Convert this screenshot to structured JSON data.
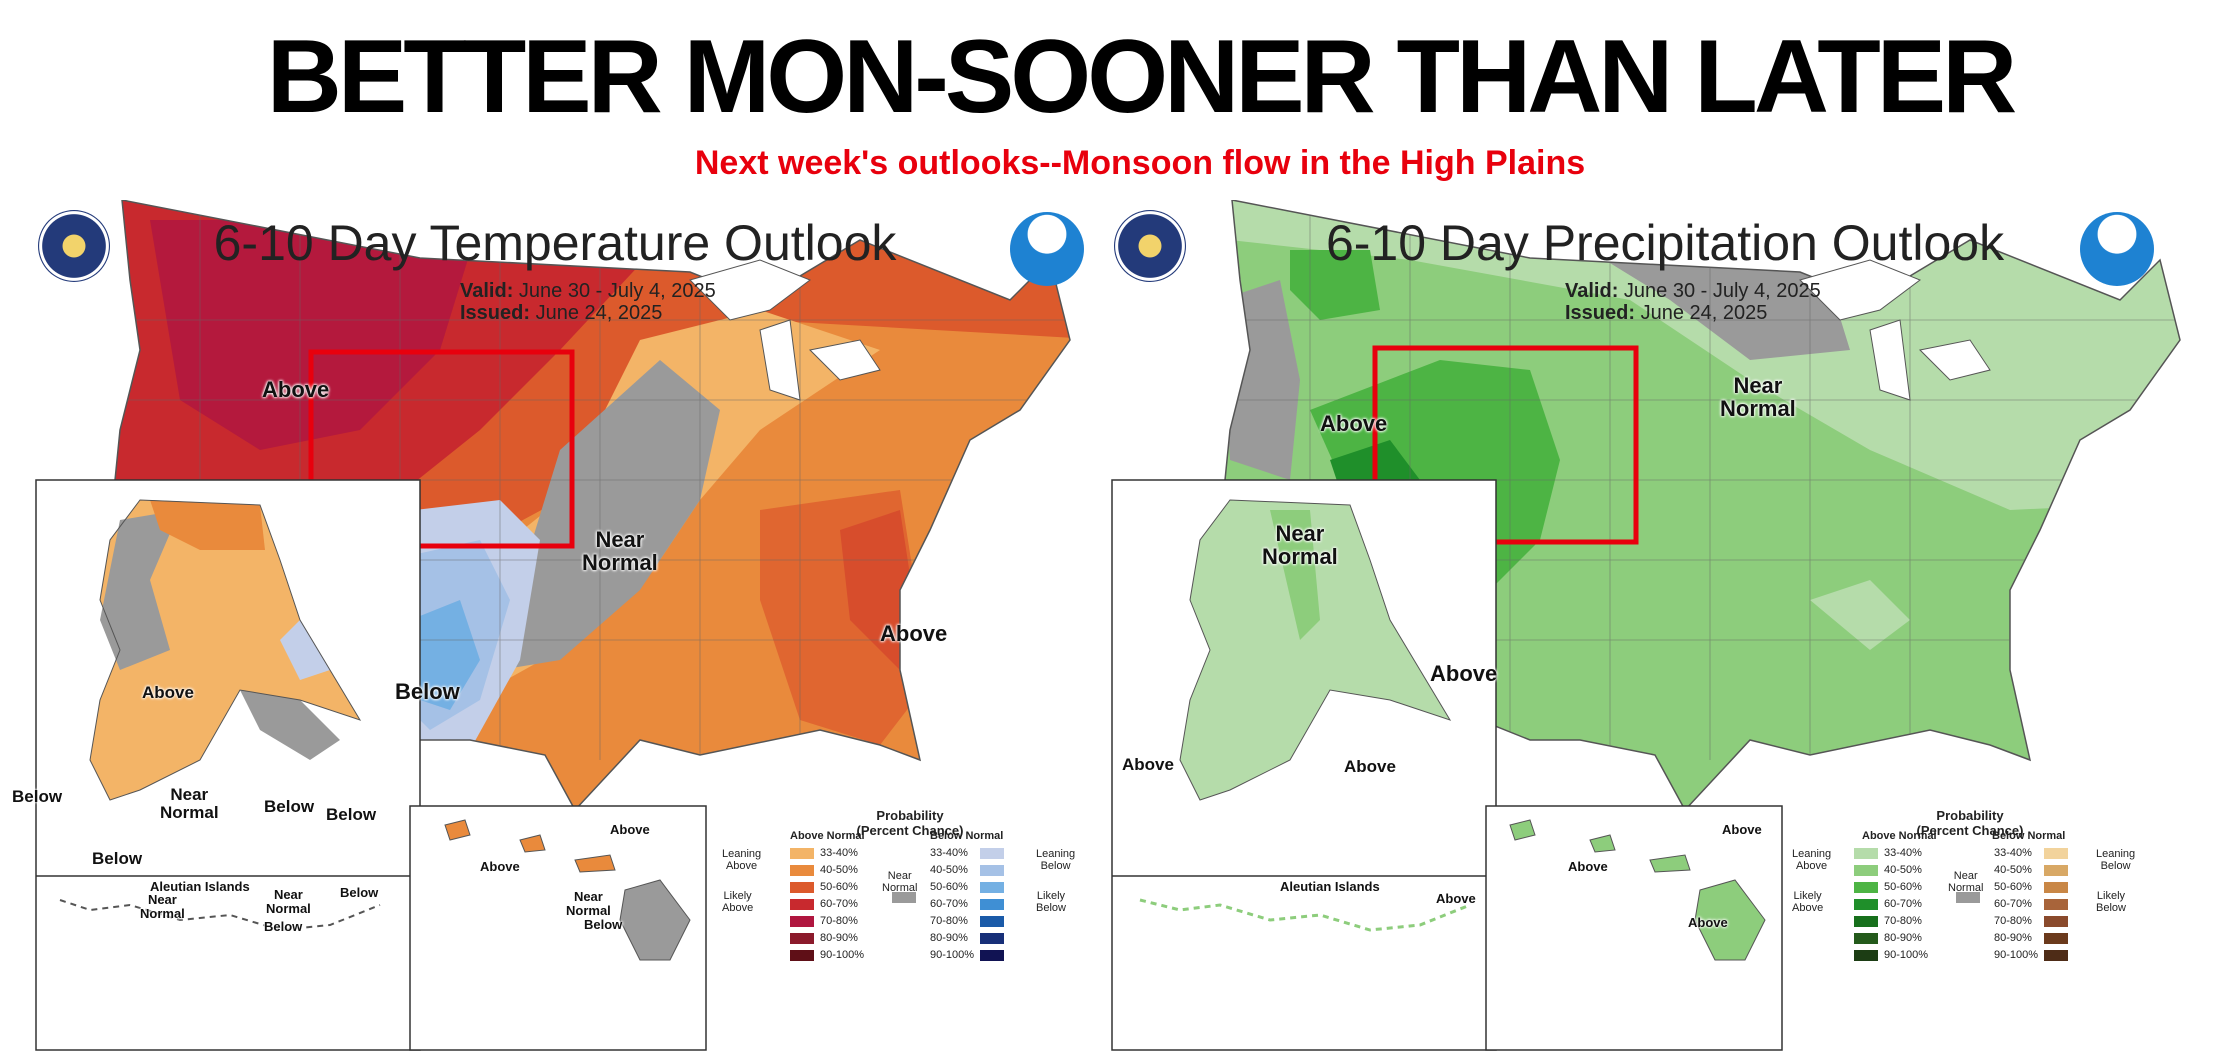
{
  "headline": "BETTER MON-SOONER THAN LATER",
  "subheadline": "Next week's outlooks--Monsoon flow in the High Plains",
  "colors": {
    "headline": "#000000",
    "subheadline": "#e8000d",
    "highlight_box": "#e8000d"
  },
  "temperature": {
    "title": "6-10 Day Temperature Outlook",
    "valid_label": "Valid:",
    "valid_value": "June 30 - July 4, 2025",
    "issued_label": "Issued:",
    "issued_value": "June 24, 2025",
    "labels": {
      "above_nw": "Above",
      "near_normal": "Near\nNormal",
      "below_sw": "Below",
      "above_se": "Above",
      "ak_above": "Above",
      "ak_below_w": "Below",
      "ak_near": "Near\nNormal",
      "ak_below_c": "Below",
      "ak_below_e": "Below",
      "ak_below_s": "Below",
      "aleutian_title": "Aleutian Islands",
      "aleu_near_1": "Near\nNormal",
      "aleu_near_2": "Near\nNormal",
      "aleu_below_1": "Below",
      "aleu_below_2": "Below",
      "hi_above_1": "Above",
      "hi_above_2": "Above",
      "hi_near": "Near\nNormal",
      "hi_below": "Below"
    },
    "legend": {
      "title": "Probability\n(Percent Chance)",
      "col_left": "Above Normal",
      "col_right": "Below Normal",
      "leaning_left": "Leaning\nAbove",
      "likely_left": "Likely\nAbove",
      "leaning_right": "Leaning\nBelow",
      "likely_right": "Likely\nBelow",
      "near": "Near\nNormal",
      "ranges": [
        "33-40%",
        "40-50%",
        "50-60%",
        "60-70%",
        "70-80%",
        "80-90%",
        "90-100%"
      ],
      "left_colors": [
        "#f3b467",
        "#e98a3c",
        "#dc5a2c",
        "#c8292e",
        "#b0163f",
        "#8b1a2b",
        "#5f0f17"
      ],
      "right_colors": [
        "#c3cfe9",
        "#a5c1e6",
        "#74b0e3",
        "#3f8fd4",
        "#1a5aa8",
        "#172f78",
        "#111353"
      ],
      "near_color": "#9a9a9a"
    }
  },
  "precipitation": {
    "title": "6-10 Day Precipitation Outlook",
    "valid_label": "Valid:",
    "valid_value": "June 30 - July 4, 2025",
    "issued_label": "Issued:",
    "issued_value": "June 24, 2025",
    "labels": {
      "above_nw": "Above",
      "near_normal_n": "Near\nNormal",
      "near_normal_w": "Near\nNormal",
      "above_sw": "Above",
      "ak_above_w": "Above",
      "ak_above_c": "Above",
      "aleutian_title": "Aleutian Islands",
      "aleu_above": "Above",
      "hi_above_1": "Above",
      "hi_above_2": "Above",
      "hi_above_3": "Above"
    },
    "legend": {
      "title": "Probability\n(Percent Chance)",
      "col_left": "Above Normal",
      "col_right": "Below Normal",
      "leaning_left": "Leaning\nAbove",
      "likely_left": "Likely\nAbove",
      "leaning_right": "Leaning\nBelow",
      "likely_right": "Likely\nBelow",
      "near": "Near\nNormal",
      "ranges": [
        "33-40%",
        "40-50%",
        "50-60%",
        "60-70%",
        "70-80%",
        "80-90%",
        "90-100%"
      ],
      "left_colors": [
        "#b5dcaa",
        "#8dcd7c",
        "#4db444",
        "#1f8f2a",
        "#17701c",
        "#245a1b",
        "#1c3d14"
      ],
      "right_colors": [
        "#f2d39c",
        "#d8a865",
        "#c98746",
        "#a8643a",
        "#8a4a2c",
        "#6b3a1c",
        "#4e2c17"
      ],
      "near_color": "#9a9a9a"
    }
  }
}
